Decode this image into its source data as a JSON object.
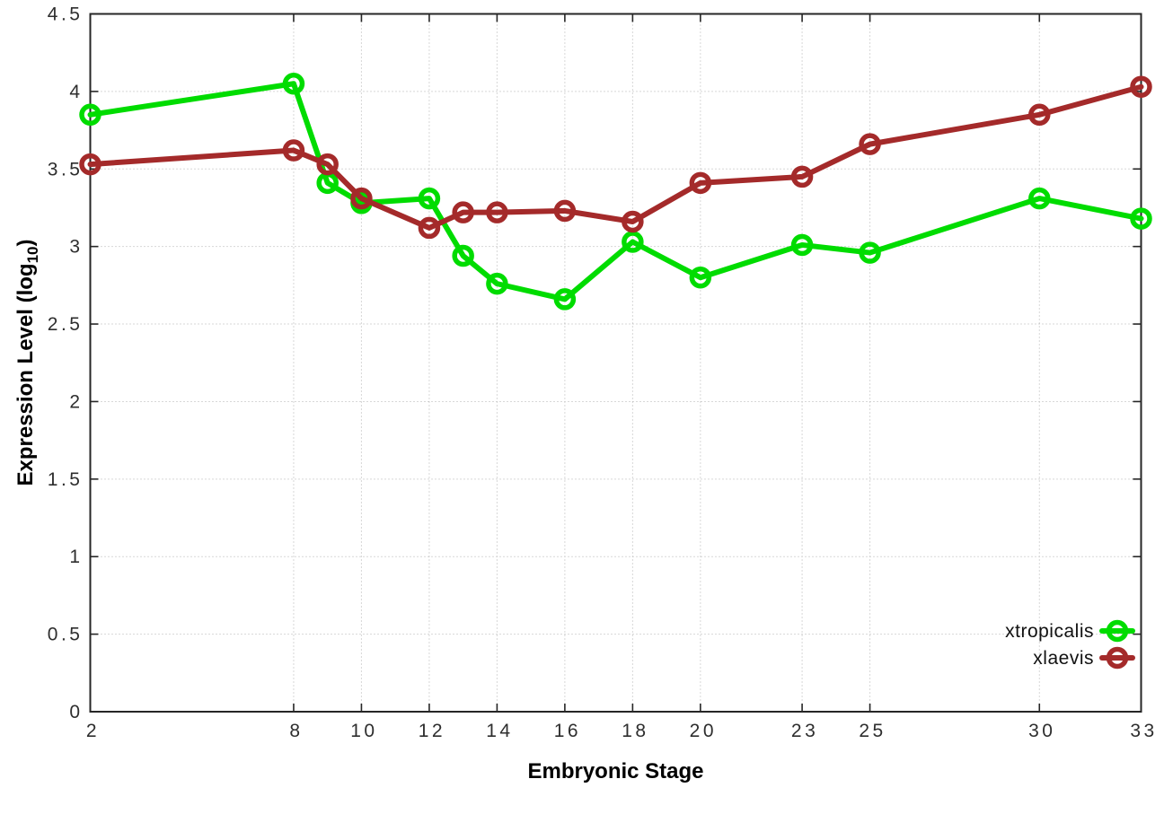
{
  "chart_data": {
    "type": "line",
    "title": "",
    "xlabel": "Embryonic Stage",
    "ylabel": {
      "pre": "Expression Level (log",
      "sub": "10",
      "post": ")"
    },
    "xlim": [
      2,
      33
    ],
    "ylim": [
      0,
      4.5
    ],
    "grid": true,
    "legend_position": "bottom-right-inside",
    "x": [
      2,
      8,
      9,
      10,
      12,
      13,
      14,
      16,
      18,
      20,
      23,
      25,
      30,
      33
    ],
    "x_tick_labels": [
      2,
      8,
      10,
      12,
      14,
      16,
      18,
      20,
      23,
      25,
      30,
      33
    ],
    "y_tick_labels": [
      0,
      0.5,
      1,
      1.5,
      2,
      2.5,
      3,
      3.5,
      4,
      4.5
    ],
    "series": [
      {
        "name": "xtropicalis",
        "color": "#00dc00",
        "values": [
          3.85,
          4.05,
          3.41,
          3.28,
          3.31,
          2.94,
          2.76,
          2.66,
          3.03,
          2.8,
          3.01,
          2.96,
          3.31,
          3.18
        ]
      },
      {
        "name": "xlaevis",
        "color": "#a42a2a",
        "values": [
          3.53,
          3.62,
          3.53,
          3.31,
          3.12,
          3.22,
          3.22,
          3.23,
          3.16,
          3.41,
          3.45,
          3.66,
          3.85,
          4.03
        ]
      }
    ],
    "style": {
      "border_color": "#262626",
      "grid_color": "#b0b0b0",
      "background": "#ffffff"
    }
  }
}
